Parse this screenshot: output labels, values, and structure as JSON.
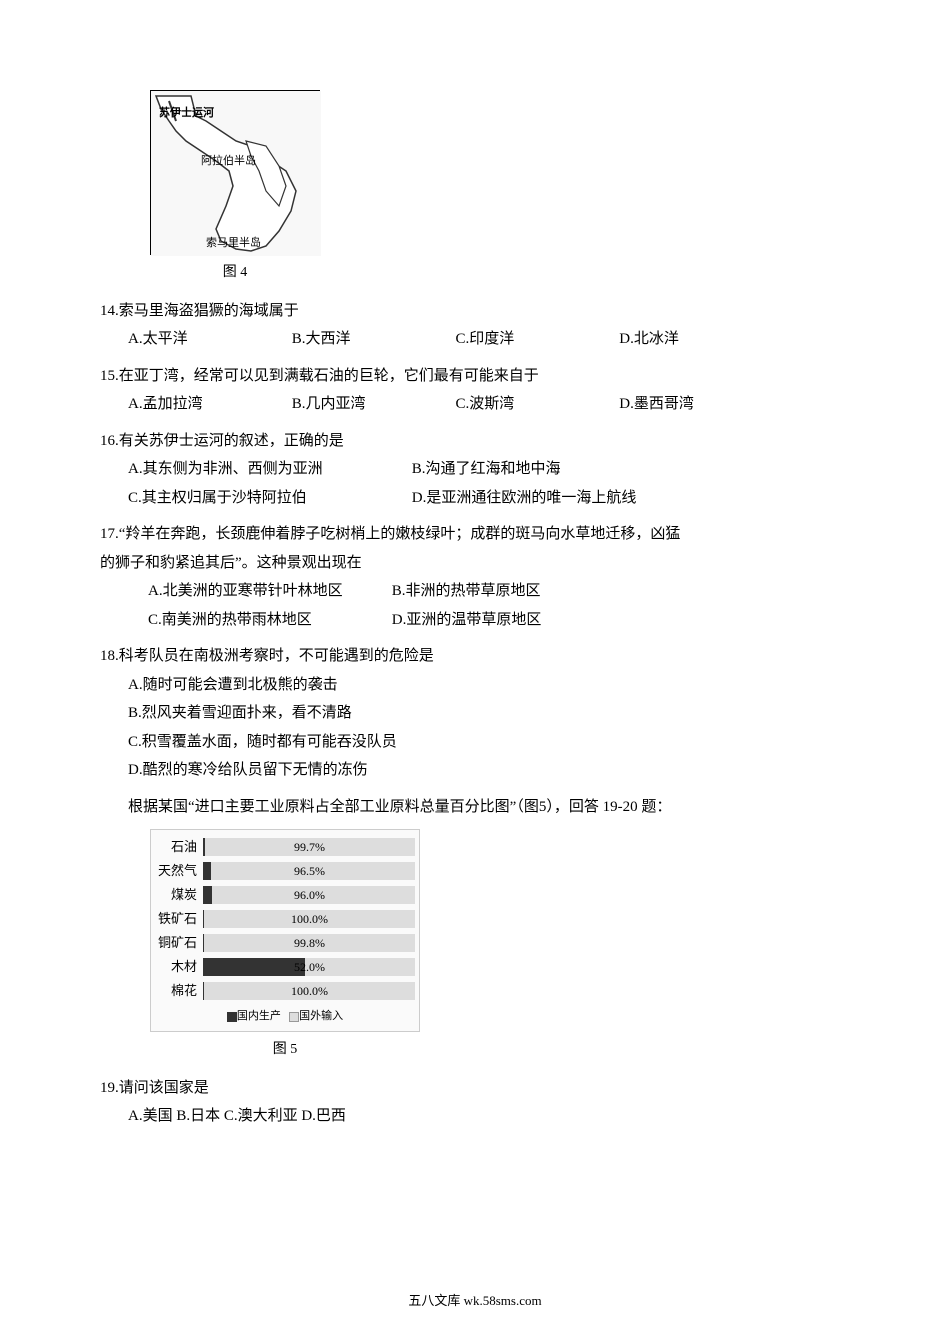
{
  "figure4": {
    "caption": "图 4",
    "labels": {
      "suez": "苏伊士运河",
      "arabia": "阿拉伯半岛",
      "somalia": "索马里半岛"
    }
  },
  "q14": {
    "text": "14.索马里海盗猖獗的海域属于",
    "opts": {
      "a": "A.太平洋",
      "b": "B.大西洋",
      "c": "C.印度洋",
      "d": "D.北冰洋"
    }
  },
  "q15": {
    "text": "15.在亚丁湾，经常可以见到满载石油的巨轮，它们最有可能来自于",
    "opts": {
      "a": "A.孟加拉湾",
      "b": "B.几内亚湾",
      "c": "C.波斯湾",
      "d": "D.墨西哥湾"
    }
  },
  "q16": {
    "text": "16.有关苏伊士运河的叙述，正确的是",
    "opts": {
      "a": "A.其东侧为非洲、西侧为亚洲",
      "b": "B.沟通了红海和地中海",
      "c": "C.其主权归属于沙特阿拉伯",
      "d": "D.是亚洲通往欧洲的唯一海上航线"
    }
  },
  "q17": {
    "text1": "17.“羚羊在奔跑，长颈鹿伸着脖子吃树梢上的嫩枝绿叶；成群的斑马向水草地迁移，凶猛",
    "text2": "的狮子和豹紧追其后”。这种景观出现在",
    "opts": {
      "a": "A.北美洲的亚寒带针叶林地区",
      "b": "B.非洲的热带草原地区",
      "c": "C.南美洲的热带雨林地区",
      "d": "D.亚洲的温带草原地区"
    }
  },
  "q18": {
    "text": "18.科考队员在南极洲考察时，不可能遇到的危险是",
    "opts": {
      "a": "A.随时可能会遭到北极熊的袭击",
      "b": "B.烈风夹着雪迎面扑来，看不清路",
      "c": "C.积雪覆盖水面，随时都有可能吞没队员",
      "d": "D.酷烈的寒冷给队员留下无情的冻伤"
    }
  },
  "passage": "根据某国“进口主要工业原料占全部工业原料总量百分比图”（图5），回答 19-20 题：",
  "figure5": {
    "caption": "图 5",
    "rows": [
      {
        "label": "石油",
        "value": 99.7,
        "text": "99.7%"
      },
      {
        "label": "天然气",
        "value": 96.5,
        "text": "96.5%"
      },
      {
        "label": "煤炭",
        "value": 96.0,
        "text": "96.0%"
      },
      {
        "label": "铁矿石",
        "value": 100.0,
        "text": "100.0%"
      },
      {
        "label": "铜矿石",
        "value": 99.8,
        "text": "99.8%"
      },
      {
        "label": "木材",
        "value": 52.0,
        "text": "52.0%"
      },
      {
        "label": "棉花",
        "value": 100.0,
        "text": "100.0%"
      }
    ],
    "legend": {
      "domestic": "国内生产",
      "foreign": "国外输入"
    }
  },
  "q19": {
    "text": "19.请问该国家是",
    "opts": "A.美国  B.日本  C.澳大利亚  D.巴西"
  },
  "footer": "五八文库 wk.58sms.com"
}
